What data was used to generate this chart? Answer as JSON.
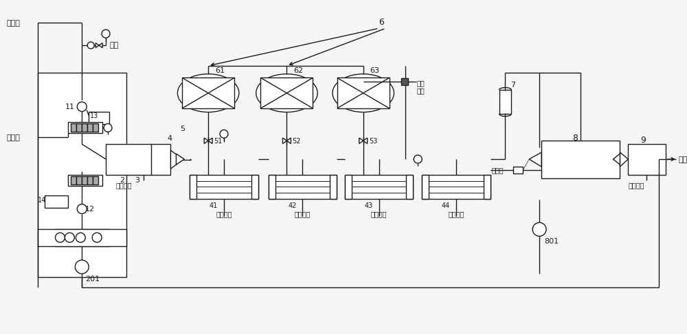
{
  "bg_color": "#f5f5f5",
  "line_color": "#1a1a1a",
  "fig_width": 10.0,
  "fig_height": 4.87,
  "dpi": 100,
  "labels": {
    "acid_gas": "酸性气",
    "nitrogen": "氮气",
    "fuel_gas": "燃料气",
    "fuel_gas2": "燃料气",
    "mid_steam": "中压蒸汽",
    "mid_steam2": "中压蒸汽",
    "oxidized_air": "氧化\n空气",
    "flue_gas": "烟气",
    "n2": "2",
    "n3": "3",
    "n4": "4",
    "n5": "5",
    "n6": "6",
    "n7": "7",
    "n8": "8",
    "n9": "9",
    "n11": "11",
    "n12": "12",
    "n13": "13",
    "n14": "14",
    "n41": "41",
    "n42": "42",
    "n43": "43",
    "n44": "44",
    "n51": "51",
    "n52": "52",
    "n53": "53",
    "n61": "61",
    "n62": "62",
    "n63": "63",
    "n201": "201",
    "n801": "801"
  }
}
